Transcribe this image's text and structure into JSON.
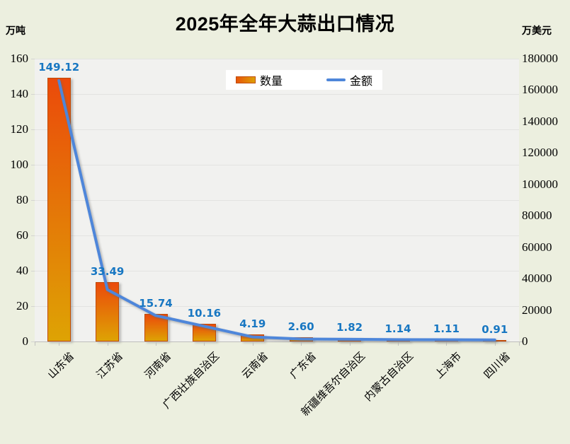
{
  "title": "2025年全年大蒜出口情况",
  "units": {
    "left": "万吨",
    "right": "万美元"
  },
  "legend": {
    "bar_label": "数量",
    "line_label": "金额",
    "position": "top-center"
  },
  "chart_data": {
    "type": "combo_bar_line",
    "title": "2025年全年大蒜出口情况",
    "categories": [
      "山东省",
      "江苏省",
      "河南省",
      "广西壮族自治区",
      "云南省",
      "广东省",
      "新疆维吾尔自治区",
      "内蒙古自治区",
      "上海市",
      "四川省"
    ],
    "series": [
      {
        "name": "数量",
        "type": "bar",
        "axis": "left",
        "unit": "万吨",
        "values": [
          149.12,
          33.49,
          15.74,
          10.16,
          4.19,
          2.6,
          1.82,
          1.14,
          1.11,
          0.91
        ],
        "data_labels": [
          "149.12",
          "33.49",
          "15.74",
          "10.16",
          "4.19",
          "2.60",
          "1.82",
          "1.14",
          "1.11",
          "0.91"
        ]
      },
      {
        "name": "金额",
        "type": "line",
        "axis": "right",
        "unit": "万美元",
        "values": [
          166000,
          33000,
          16500,
          9700,
          2900,
          1600,
          1400,
          1200,
          1100,
          1000
        ],
        "estimated_from_pixels": true,
        "data_labels": []
      }
    ],
    "left_axis": {
      "unit": "万吨",
      "min": 0,
      "max": 160,
      "step": 20,
      "ticks": [
        0,
        20,
        40,
        60,
        80,
        100,
        120,
        140,
        160
      ]
    },
    "right_axis": {
      "unit": "万美元",
      "min": 0,
      "max": 180000,
      "step": 20000,
      "ticks": [
        0,
        20000,
        40000,
        60000,
        80000,
        100000,
        120000,
        140000,
        160000,
        180000
      ]
    },
    "grid": "horizontal-left-axis-steps",
    "legend_position": "top-center",
    "x_labels_rotation_deg": 45
  },
  "colors": {
    "page_bg": "#ECEFDF",
    "plot_bg": "#F1F1EF",
    "grid": "#E3E3E1",
    "bar_top": "#EB4A0B",
    "bar_bottom": "#DEA304",
    "bar_border": "#C04B07",
    "line": "#4E86DA",
    "data_label": "#1877C2",
    "title_text": "#000000",
    "axis_text": "#000000",
    "legend_bg": "#FFFFFF"
  }
}
